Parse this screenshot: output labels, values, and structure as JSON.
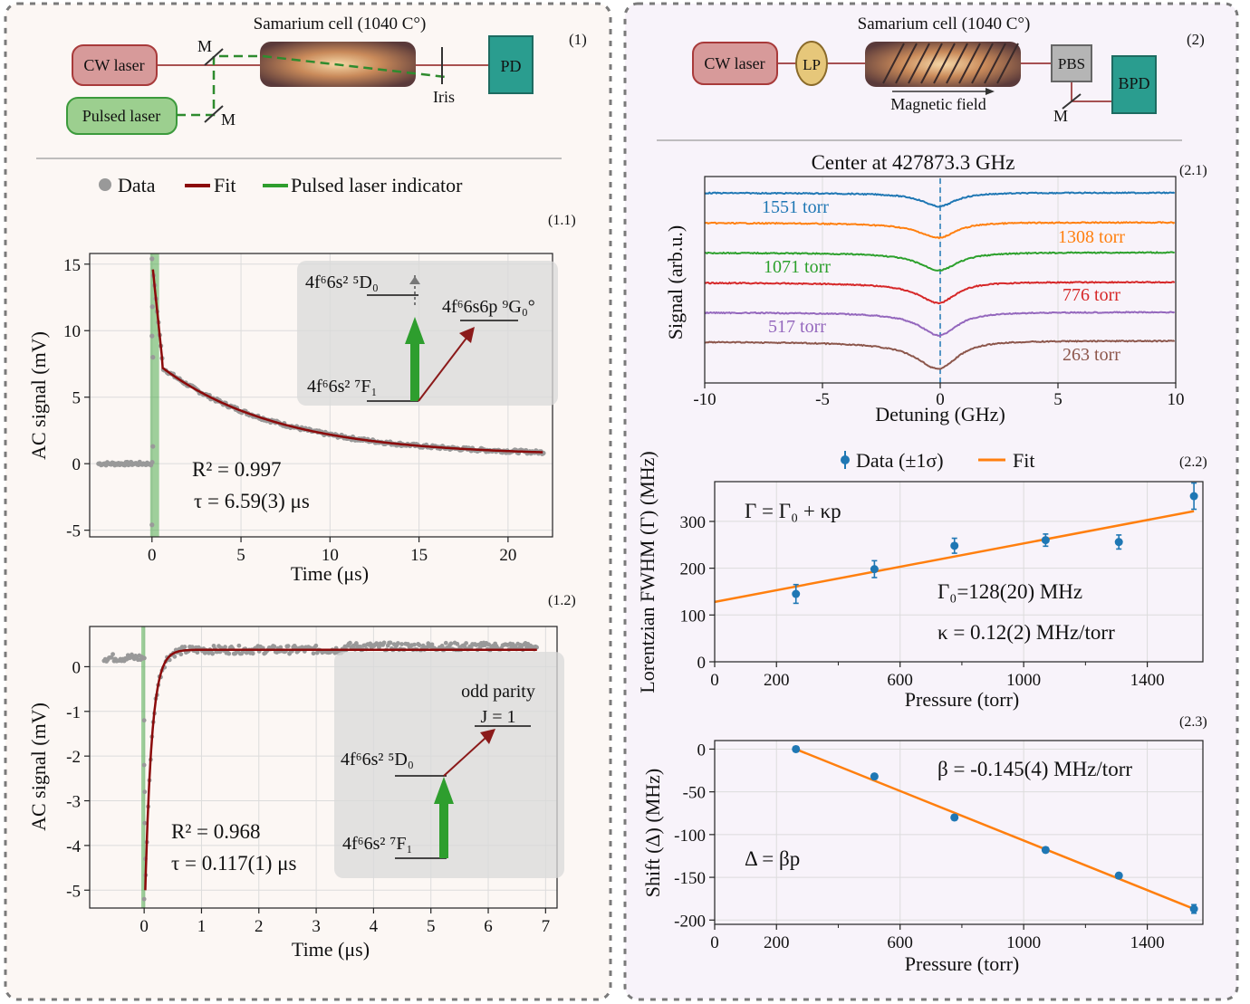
{
  "panel1": {
    "tag": "(1)",
    "setup": {
      "cw_laser": "CW laser",
      "pulsed_laser": "Pulsed laser",
      "cell": "Samarium cell (1040 C°)",
      "mirror1": "M",
      "mirror2": "M",
      "iris": "Iris",
      "pd": "PD"
    },
    "legend": {
      "data": "Data",
      "fit": "Fit",
      "pulsed": "Pulsed laser indicator"
    }
  },
  "panel2": {
    "tag": "(2)",
    "setup": {
      "cw_laser": "CW laser",
      "lp": "LP",
      "cell": "Samarium cell (1040 C°)",
      "magnetic": "Magnetic field",
      "pbs": "PBS",
      "bpd": "BPD",
      "mirror": "M"
    }
  },
  "colors": {
    "data": "#999999",
    "fit": "#8b0a0a",
    "pulsed": "#2e9e2e",
    "pt": "#1f77b4",
    "line": "#ff7f0e",
    "panel_bg_left": "#fcf7f4",
    "panel_bg_right": "#f8f3fa"
  },
  "chart_data": [
    {
      "id": "1.1",
      "type": "scatter",
      "tag": "(1.1)",
      "xlabel": "Time (μs)",
      "ylabel": "AC signal (mV)",
      "xlim": [
        -3.5,
        22.5
      ],
      "ylim": [
        -5.5,
        15.8
      ],
      "xticks": [
        0,
        5,
        10,
        15,
        20
      ],
      "yticks": [
        -5,
        0,
        5,
        10,
        15
      ],
      "fit": {
        "model": "exp-decay",
        "tau": 6.59,
        "amplitude": 6.6,
        "offset": 0.6,
        "t0": 0.3,
        "initial_peak": 14.6
      },
      "pulse_window": [
        -0.1,
        0.4
      ],
      "annotations": {
        "r2": "R² = 0.997",
        "tau": "τ = 6.59(3) μs",
        "upper_level": "4f⁶6s² ⁵D₀",
        "lower_level": "4f⁶6s² ⁷F₁",
        "target_level": "4f⁶6s6p ⁹G₀°"
      }
    },
    {
      "id": "1.2",
      "type": "scatter",
      "tag": "(1.2)",
      "xlabel": "Time (μs)",
      "ylabel": "AC signal (mV)",
      "xlim": [
        -0.95,
        7.2
      ],
      "ylim": [
        -5.4,
        0.9
      ],
      "xticks": [
        0,
        1,
        2,
        3,
        4,
        5,
        6,
        7
      ],
      "yticks": [
        -5,
        -4,
        -3,
        -2,
        -1,
        0
      ],
      "fit": {
        "model": "exp-recovery",
        "tau": 0.117,
        "minimum": -5.0,
        "plateau": 0.38,
        "t0": 0.02
      },
      "pulse_window": [
        -0.05,
        0.02
      ],
      "annotations": {
        "r2": "R² = 0.968",
        "tau": "τ = 0.117(1) μs",
        "upper_level": "4f⁶6s² ⁵D₀",
        "lower_level": "4f⁶6s² ⁷F₁",
        "odd_parity": "odd parity",
        "j": "J = 1"
      }
    },
    {
      "id": "2.1",
      "type": "line",
      "tag": "(2.1)",
      "title": "Center at 427873.3 GHz",
      "xlabel": "Detuning (GHz)",
      "ylabel": "Signal (arb.u.)",
      "xlim": [
        -10,
        10
      ],
      "xticks": [
        -10,
        -5,
        0,
        5,
        10
      ],
      "series": [
        {
          "name": "1551 torr",
          "color": "#1f77b4",
          "dip": 0.5,
          "width": 0.85
        },
        {
          "name": "1308 torr",
          "color": "#ff7f0e",
          "dip": 0.55,
          "width": 0.95
        },
        {
          "name": "1071 torr",
          "color": "#2ca02c",
          "dip": 0.65,
          "width": 1.0
        },
        {
          "name": "776 torr",
          "color": "#d62728",
          "dip": 0.75,
          "width": 0.95
        },
        {
          "name": "517 torr",
          "color": "#9467bd",
          "dip": 0.85,
          "width": 0.95
        },
        {
          "name": "263 torr",
          "color": "#8c564b",
          "dip": 1.0,
          "width": 1.05
        }
      ]
    },
    {
      "id": "2.2",
      "type": "scatter",
      "tag": "(2.2)",
      "xlabel": "Pressure (torr)",
      "ylabel": "Lorentzian FWHM (Γ) (MHz)",
      "xlim": [
        0,
        1580
      ],
      "ylim": [
        0,
        385
      ],
      "xticks": [
        0,
        200,
        600,
        1000,
        1400
      ],
      "yticks": [
        0,
        100,
        200,
        300
      ],
      "x": [
        263,
        517,
        776,
        1071,
        1308,
        1551
      ],
      "y": [
        145,
        198,
        248,
        260,
        256,
        354
      ],
      "yerr": [
        20,
        18,
        16,
        13,
        15,
        28
      ],
      "fit": {
        "intercept": 128,
        "slope": 0.125
      },
      "legend": {
        "data": "Data (±1σ)",
        "fit": "Fit"
      },
      "annotations": {
        "model": "Γ = Γ₀ + κp",
        "gamma0": "Γ₀=128(20) MHz",
        "kappa": "κ = 0.12(2) MHz/torr"
      }
    },
    {
      "id": "2.3",
      "type": "scatter",
      "tag": "(2.3)",
      "xlabel": "Pressure (torr)",
      "ylabel": "Shift (Δ) (MHz)",
      "xlim": [
        0,
        1580
      ],
      "ylim": [
        -205,
        10
      ],
      "xticks": [
        0,
        200,
        600,
        1000,
        1400
      ],
      "yticks": [
        0,
        -50,
        -100,
        -150,
        -200
      ],
      "x": [
        263,
        517,
        776,
        1071,
        1308,
        1551
      ],
      "y": [
        0,
        -32,
        -80,
        -118,
        -148,
        -187
      ],
      "yerr": [
        3,
        3,
        3,
        3,
        3,
        5
      ],
      "fit": {
        "intercept": 38,
        "slope": -0.145
      },
      "annotations": {
        "beta": "β = -0.145(4) MHz/torr",
        "model": "Δ = βp"
      }
    }
  ]
}
